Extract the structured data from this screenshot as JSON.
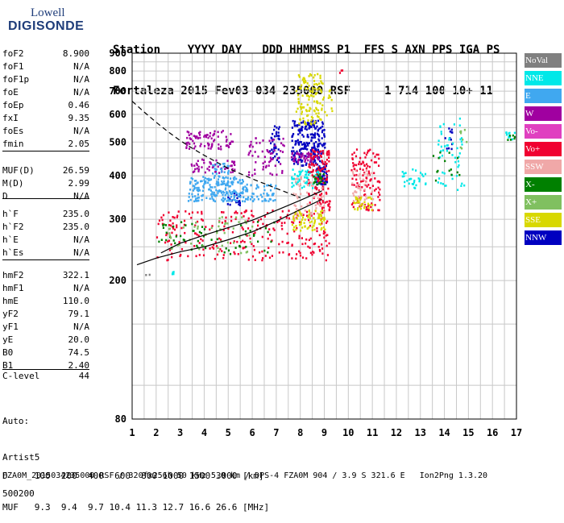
{
  "logo": {
    "line1": "Lowell",
    "line2": "DIGISONDE"
  },
  "header": {
    "line1": "Station    YYYY DAY   DDD HHMMSS P1  FFS S AXN PPS IGA PS",
    "line2": "Fortaleza 2015 Fev03 034 235000 RSF     1 714 100 10+ 11"
  },
  "params": [
    {
      "k": "foF2",
      "v": "8.900"
    },
    {
      "k": "foF1",
      "v": "N/A"
    },
    {
      "k": "foF1p",
      "v": "N/A"
    },
    {
      "k": "foE",
      "v": "N/A"
    },
    {
      "k": "foEp",
      "v": "0.46"
    },
    {
      "k": "fxI",
      "v": "9.35"
    },
    {
      "k": "foEs",
      "v": "N/A"
    },
    {
      "k": "fmin",
      "v": "2.05"
    },
    {
      "k": "MUF(D)",
      "v": "26.59"
    },
    {
      "k": "M(D)",
      "v": "2.99"
    },
    {
      "k": "D",
      "v": "N/A"
    },
    {
      "k": "h`F",
      "v": "235.0"
    },
    {
      "k": "h`F2",
      "v": "235.0"
    },
    {
      "k": "h`E",
      "v": "N/A"
    },
    {
      "k": "h`Es",
      "v": "N/A"
    },
    {
      "k": "hmF2",
      "v": "322.1"
    },
    {
      "k": "hmF1",
      "v": "N/A"
    },
    {
      "k": "hmE",
      "v": "110.0"
    },
    {
      "k": "yF2",
      "v": "79.1"
    },
    {
      "k": "yF1",
      "v": "N/A"
    },
    {
      "k": "yE",
      "v": "20.0"
    },
    {
      "k": "B0",
      "v": "74.5"
    },
    {
      "k": "B1",
      "v": "2.40"
    },
    {
      "k": "C-level",
      "v": "44"
    }
  ],
  "auto": {
    "l1": "Auto:",
    "l2": "Artist5",
    "l3": "500200"
  },
  "footer": {
    "d_line": "D     100  200  400  600  800 1000 1500 3000 [km]",
    "muf_line": "MUF   9.3  9.4  9.7 10.4 11.3 12.7 16.6 26.6 [MHz]",
    "info": "FZA0M_2015034235000.RSF / 320fx256h 50 kHz 5.0 km / DPS-4 FZA0M 904 / 3.9 S 321.6 E   Ion2Png 1.3.20"
  },
  "legend": [
    {
      "label": "NoVal",
      "color": "#808080"
    },
    {
      "label": "NNE",
      "color": "#00e8e8"
    },
    {
      "label": "E",
      "color": "#40a8f0"
    },
    {
      "label": "W",
      "color": "#a000a0"
    },
    {
      "label": "Vo-",
      "color": "#e040c0"
    },
    {
      "label": "Vo+",
      "color": "#f00030"
    },
    {
      "label": "SSW",
      "color": "#f0a8a8"
    },
    {
      "label": "X-",
      "color": "#008000"
    },
    {
      "label": "X+",
      "color": "#80c060"
    },
    {
      "label": "SSE",
      "color": "#d8d800"
    },
    {
      "label": "NNW",
      "color": "#0000c0"
    }
  ],
  "chart_data": {
    "type": "scatter",
    "xlim": [
      1,
      17
    ],
    "ylim": [
      80,
      900
    ],
    "log_y": true,
    "x_ticks": [
      1,
      2,
      3,
      4,
      5,
      6,
      7,
      8,
      9,
      10,
      11,
      12,
      13,
      14,
      15,
      16,
      17
    ],
    "y_ticks": [
      80,
      200,
      300,
      400,
      500,
      600,
      700,
      800,
      900
    ],
    "grid": true,
    "clusters": [
      {
        "mode": "NNW",
        "x": [
          7.6,
          9.0
        ],
        "y": [
          430,
          580
        ],
        "n": 220
      },
      {
        "mode": "NNW",
        "x": [
          8.6,
          9.1
        ],
        "y": [
          380,
          430
        ],
        "n": 60
      },
      {
        "mode": "NNW",
        "x": [
          6.7,
          7.1
        ],
        "y": [
          440,
          560
        ],
        "n": 40
      },
      {
        "mode": "NNW",
        "x": [
          4.9,
          5.5
        ],
        "y": [
          330,
          360
        ],
        "n": 20
      },
      {
        "mode": "NNW",
        "x": [
          14.0,
          14.3
        ],
        "y": [
          480,
          560
        ],
        "n": 12
      },
      {
        "mode": "W",
        "x": [
          3.2,
          5.2
        ],
        "y": [
          480,
          545
        ],
        "n": 80
      },
      {
        "mode": "W",
        "x": [
          5.8,
          7.3
        ],
        "y": [
          400,
          520
        ],
        "n": 60
      },
      {
        "mode": "W",
        "x": [
          7.6,
          8.8
        ],
        "y": [
          440,
          470
        ],
        "n": 50
      },
      {
        "mode": "W",
        "x": [
          3.4,
          5.3
        ],
        "y": [
          410,
          450
        ],
        "n": 50
      },
      {
        "mode": "E",
        "x": [
          3.3,
          5.6
        ],
        "y": [
          340,
          400
        ],
        "n": 180
      },
      {
        "mode": "E",
        "x": [
          5.5,
          7.0
        ],
        "y": [
          340,
          380
        ],
        "n": 60
      },
      {
        "mode": "E",
        "x": [
          4.3,
          5.0
        ],
        "y": [
          380,
          440
        ],
        "n": 40
      },
      {
        "mode": "NNE",
        "x": [
          7.6,
          8.8
        ],
        "y": [
          370,
          420
        ],
        "n": 60
      },
      {
        "mode": "NNE",
        "x": [
          12.2,
          13.2
        ],
        "y": [
          370,
          420
        ],
        "n": 30
      },
      {
        "mode": "NNE",
        "x": [
          13.7,
          14.8
        ],
        "y": [
          360,
          600
        ],
        "n": 50
      },
      {
        "mode": "NNE",
        "x": [
          16.5,
          16.9
        ],
        "y": [
          510,
          540
        ],
        "n": 10
      },
      {
        "mode": "NNE",
        "x": [
          2.4,
          2.7
        ],
        "y": [
          210,
          214
        ],
        "n": 4
      },
      {
        "mode": "Vo+",
        "x": [
          2.0,
          9.2
        ],
        "y": [
          230,
          320
        ],
        "n": 260
      },
      {
        "mode": "Vo+",
        "x": [
          8.3,
          9.2
        ],
        "y": [
          320,
          480
        ],
        "n": 120
      },
      {
        "mode": "Vo+",
        "x": [
          10.1,
          11.3
        ],
        "y": [
          320,
          480
        ],
        "n": 120
      },
      {
        "mode": "Vo+",
        "x": [
          9.6,
          10.0
        ],
        "y": [
          790,
          810
        ],
        "n": 3
      },
      {
        "mode": "SSW",
        "x": [
          7.6,
          9.0
        ],
        "y": [
          300,
          400
        ],
        "n": 60
      },
      {
        "mode": "SSW",
        "x": [
          10.1,
          11.0
        ],
        "y": [
          330,
          420
        ],
        "n": 40
      },
      {
        "mode": "SSE",
        "x": [
          7.8,
          8.9
        ],
        "y": [
          560,
          790
        ],
        "n": 90
      },
      {
        "mode": "SSE",
        "x": [
          7.6,
          9.0
        ],
        "y": [
          280,
          320
        ],
        "n": 70
      },
      {
        "mode": "SSE",
        "x": [
          8.0,
          9.3
        ],
        "y": [
          590,
          740
        ],
        "n": 40
      },
      {
        "mode": "SSE",
        "x": [
          10.2,
          11.0
        ],
        "y": [
          320,
          350
        ],
        "n": 30
      },
      {
        "mode": "X-",
        "x": [
          2.0,
          7.0
        ],
        "y": [
          240,
          300
        ],
        "n": 60
      },
      {
        "mode": "X-",
        "x": [
          8.5,
          9.0
        ],
        "y": [
          380,
          410
        ],
        "n": 20
      },
      {
        "mode": "X-",
        "x": [
          13.5,
          14.6
        ],
        "y": [
          390,
          470
        ],
        "n": 14
      },
      {
        "mode": "X-",
        "x": [
          16.6,
          16.9
        ],
        "y": [
          510,
          530
        ],
        "n": 6
      },
      {
        "mode": "X+",
        "x": [
          2.5,
          6.0
        ],
        "y": [
          240,
          310
        ],
        "n": 50
      },
      {
        "mode": "X+",
        "x": [
          14.6,
          14.9
        ],
        "y": [
          480,
          560
        ],
        "n": 8
      },
      {
        "mode": "NoVal",
        "x": [
          1.5,
          1.7
        ],
        "y": [
          208,
          212
        ],
        "n": 2
      }
    ],
    "trace_curve": {
      "x": [
        1.2,
        2,
        3,
        4,
        5,
        6,
        7,
        8,
        8.9
      ],
      "y": [
        222,
        232,
        242,
        250,
        262,
        276,
        296,
        320,
        342
      ]
    },
    "trace_curve2": {
      "x": [
        2.2,
        3,
        4,
        5,
        6,
        7,
        8,
        8.9
      ],
      "y": [
        240,
        256,
        270,
        284,
        298,
        318,
        340,
        362
      ]
    },
    "muf_curve": {
      "x": [
        1,
        1.5,
        2,
        2.5,
        3,
        3.5,
        4,
        5,
        6,
        7,
        8
      ],
      "y": [
        655,
        610,
        570,
        535,
        505,
        480,
        458,
        420,
        392,
        368,
        346
      ]
    }
  }
}
